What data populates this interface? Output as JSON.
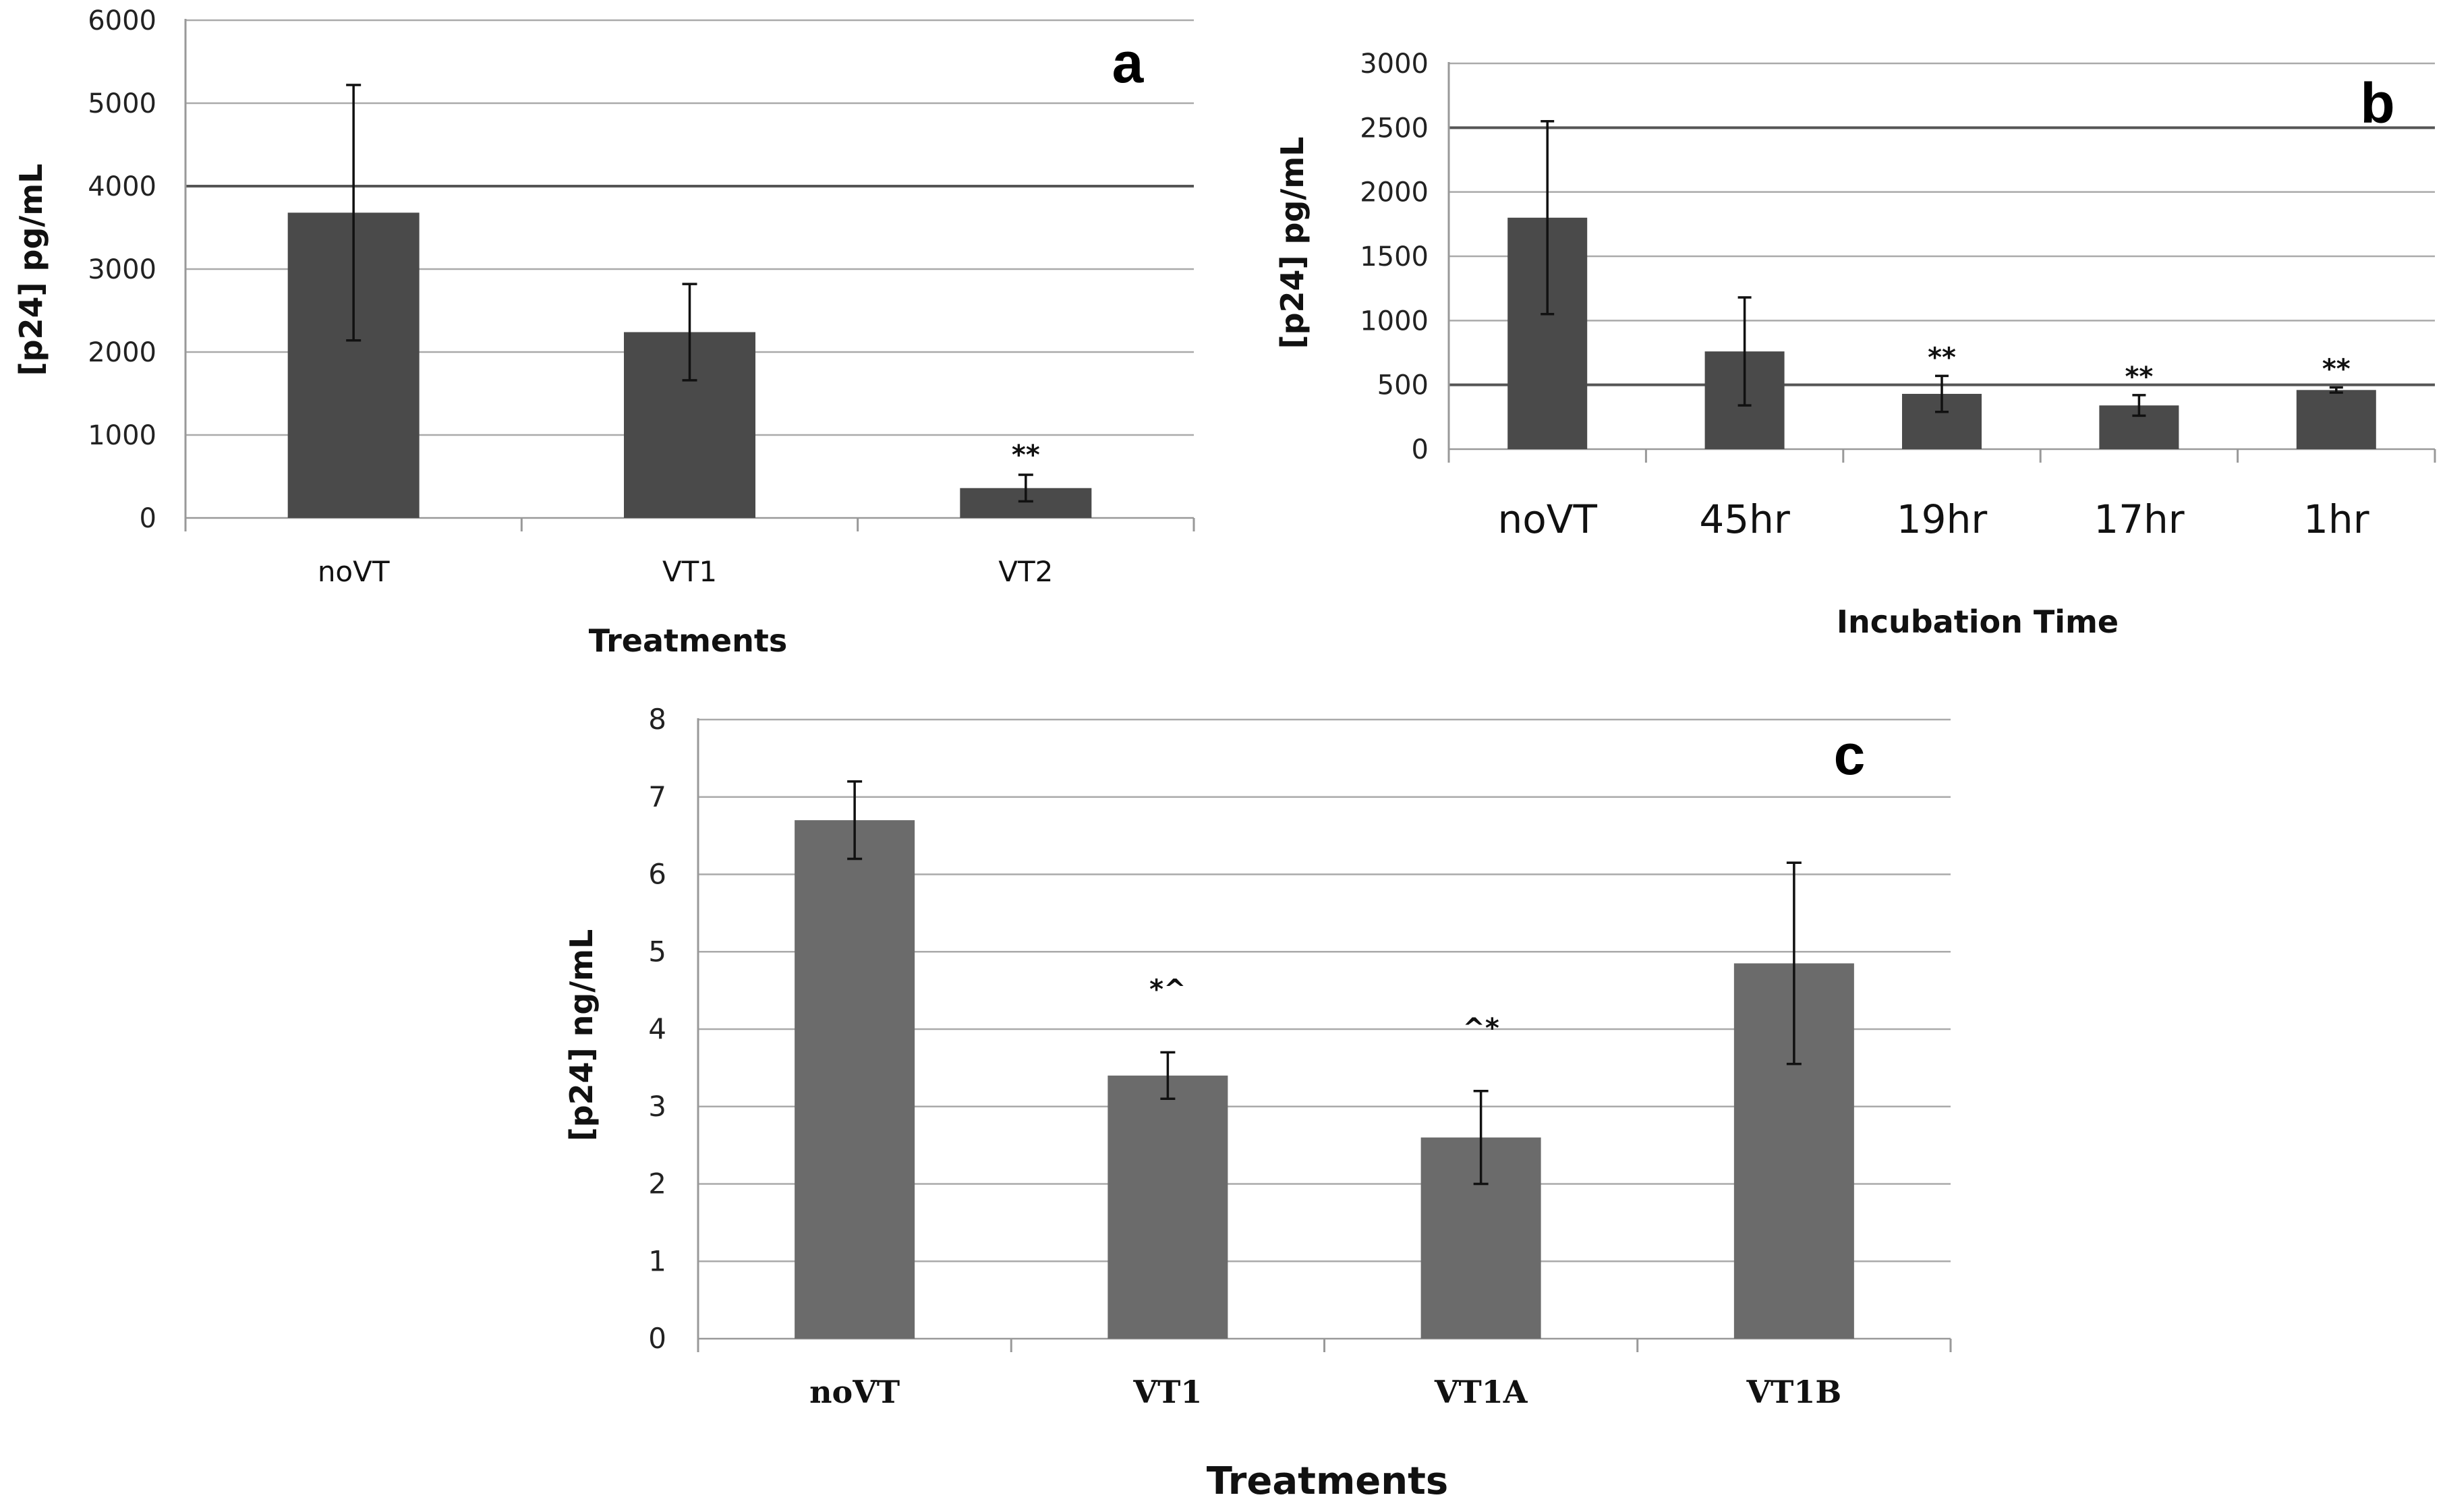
{
  "chart_data": [
    {
      "type": "bar",
      "panel_label": "a",
      "title": "",
      "xlabel": "Treatments",
      "ylabel": "[p24] pg/mL",
      "ylim": [
        0,
        6000
      ],
      "yticks": [
        "0",
        "1000",
        "2000",
        "3000",
        "4000",
        "5000",
        "6000"
      ],
      "categories": [
        "noVT",
        "VT1",
        "VT2"
      ],
      "values": [
        3680,
        2240,
        360
      ],
      "error": [
        1540,
        580,
        160
      ],
      "annotations": [
        "",
        "",
        "**"
      ],
      "bar_color": "#4a4a4a",
      "grid": true,
      "legend": "none"
    },
    {
      "type": "bar",
      "panel_label": "b",
      "title": "",
      "xlabel": "Incubation Time",
      "ylabel": "[p24] pg/mL",
      "ylim": [
        0,
        3000
      ],
      "yticks": [
        "0",
        "500",
        "1000",
        "1500",
        "2000",
        "2500",
        "3000"
      ],
      "categories": [
        "noVT",
        "45hr",
        "19hr",
        "17hr",
        "1hr"
      ],
      "values": [
        1800,
        760,
        430,
        340,
        460
      ],
      "error": [
        750,
        420,
        140,
        80,
        20
      ],
      "annotations": [
        "",
        "",
        "**",
        "**",
        "**"
      ],
      "bar_color": "#4a4a4a",
      "grid": true,
      "legend": "none"
    },
    {
      "type": "bar",
      "panel_label": "c",
      "title": "",
      "xlabel": "Treatments",
      "ylabel": "[p24] ng/mL",
      "ylim": [
        0,
        8
      ],
      "yticks": [
        "0",
        "1",
        "2",
        "3",
        "4",
        "5",
        "6",
        "7",
        "8"
      ],
      "categories": [
        "noVT",
        "VT1",
        "VT1A",
        "VT1B"
      ],
      "values": [
        6.7,
        3.4,
        2.6,
        4.85
      ],
      "error": [
        0.5,
        0.3,
        0.6,
        1.3
      ],
      "annotations": [
        "",
        "*^",
        "^*",
        ""
      ],
      "bar_color": "#6b6b6b",
      "grid": true,
      "legend": "none"
    }
  ]
}
